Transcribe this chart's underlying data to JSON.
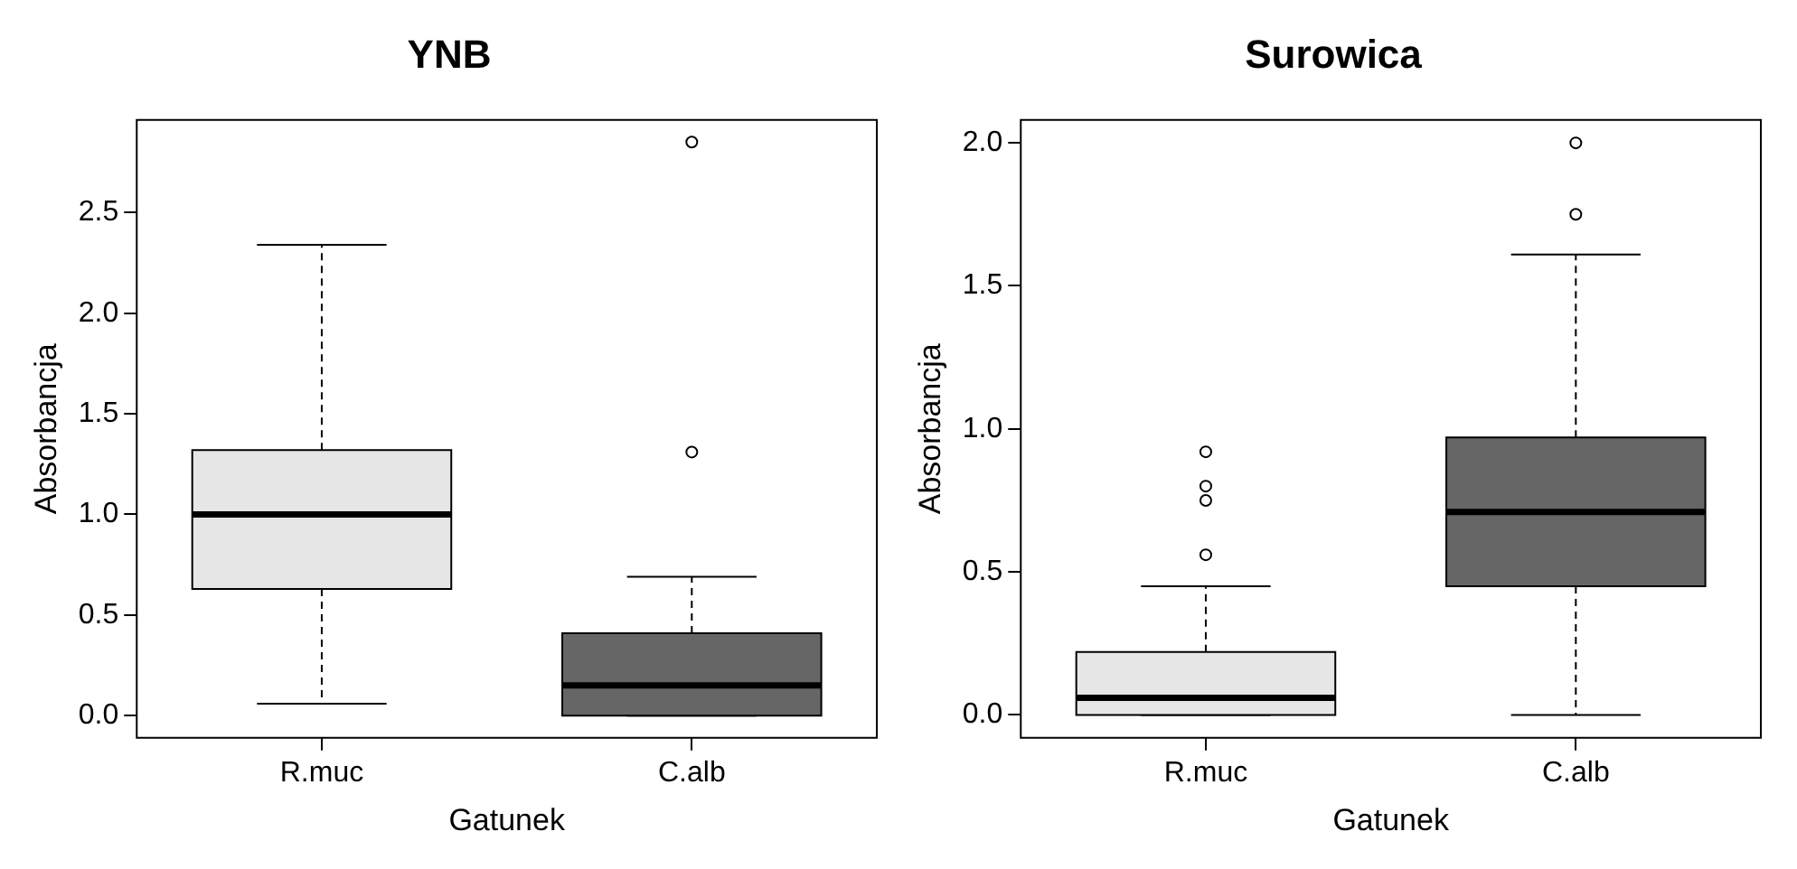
{
  "chart_data": [
    {
      "type": "box",
      "title": "YNB",
      "xlabel": "Gatunek",
      "ylabel": "Absorbancja",
      "categories": [
        "R.muc",
        "C.alb"
      ],
      "colors": [
        "#e6e6e6",
        "#666666"
      ],
      "boxes": [
        {
          "low": 0.06,
          "q1": 0.63,
          "median": 1.0,
          "q3": 1.32,
          "high": 2.34
        },
        {
          "low": 0.0,
          "q1": 0.0,
          "median": 0.15,
          "q3": 0.41,
          "high": 0.69,
          "outliers": [
            1.31,
            2.85
          ]
        }
      ],
      "ylim": [
        -0.11,
        2.96
      ],
      "yticks": [
        {
          "value": 0,
          "label": "0.0"
        },
        {
          "value": 0.5,
          "label": "0.5"
        },
        {
          "value": 1,
          "label": "1.0"
        },
        {
          "value": 1.5,
          "label": "1.5"
        },
        {
          "value": 2,
          "label": "2.0"
        },
        {
          "value": 2.5,
          "label": "2.5"
        }
      ],
      "grid": false
    },
    {
      "type": "box",
      "title": "Surowica",
      "xlabel": "Gatunek",
      "ylabel": "Absorbancja",
      "categories": [
        "R.muc",
        "C.alb"
      ],
      "colors": [
        "#e6e6e6",
        "#666666"
      ],
      "boxes": [
        {
          "low": 0.0,
          "q1": 0.0,
          "median": 0.06,
          "q3": 0.22,
          "high": 0.45,
          "outliers": [
            0.56,
            0.75,
            0.8,
            0.92
          ]
        },
        {
          "low": 0.0,
          "q1": 0.45,
          "median": 0.71,
          "q3": 0.97,
          "high": 1.61,
          "outliers": [
            1.75,
            2.0
          ]
        }
      ],
      "ylim": [
        -0.08,
        2.08
      ],
      "yticks": [
        {
          "value": 0,
          "label": "0.0"
        },
        {
          "value": 0.5,
          "label": "0.5"
        },
        {
          "value": 1,
          "label": "1.0"
        },
        {
          "value": 1.5,
          "label": "1.5"
        },
        {
          "value": 2,
          "label": "2.0"
        }
      ],
      "grid": false
    }
  ]
}
